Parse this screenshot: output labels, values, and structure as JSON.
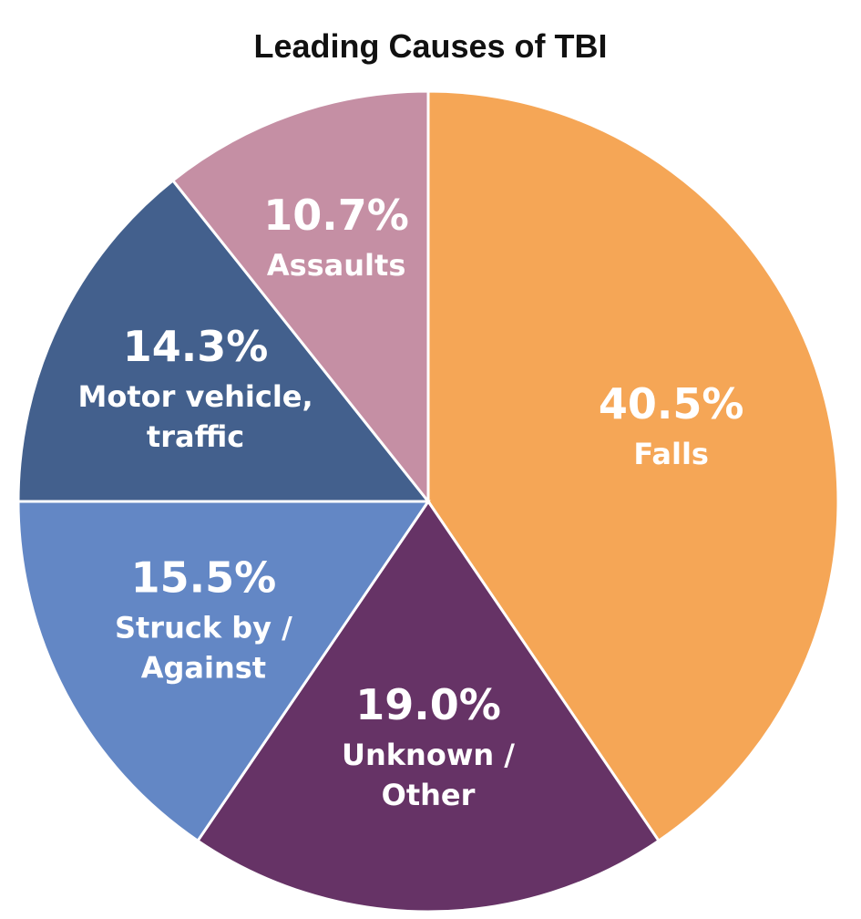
{
  "chart_data": {
    "type": "pie",
    "title": "Leading Causes of TBI",
    "slices": [
      {
        "label_lines": [
          "Falls"
        ],
        "percent_label": "40.5%",
        "value": 40.5,
        "color": "#F5A656"
      },
      {
        "label_lines": [
          "Unknown /",
          "Other"
        ],
        "percent_label": "19.0%",
        "value": 19.0,
        "color": "#663366"
      },
      {
        "label_lines": [
          "Struck by /",
          "Against"
        ],
        "percent_label": "15.5%",
        "value": 15.5,
        "color": "#6387C5"
      },
      {
        "label_lines": [
          "Motor vehicle,",
          "traffic"
        ],
        "percent_label": "14.3%",
        "value": 14.3,
        "color": "#43608D"
      },
      {
        "label_lines": [
          "Assaults"
        ],
        "percent_label": "10.7%",
        "value": 10.7,
        "color": "#C58FA4"
      }
    ]
  }
}
